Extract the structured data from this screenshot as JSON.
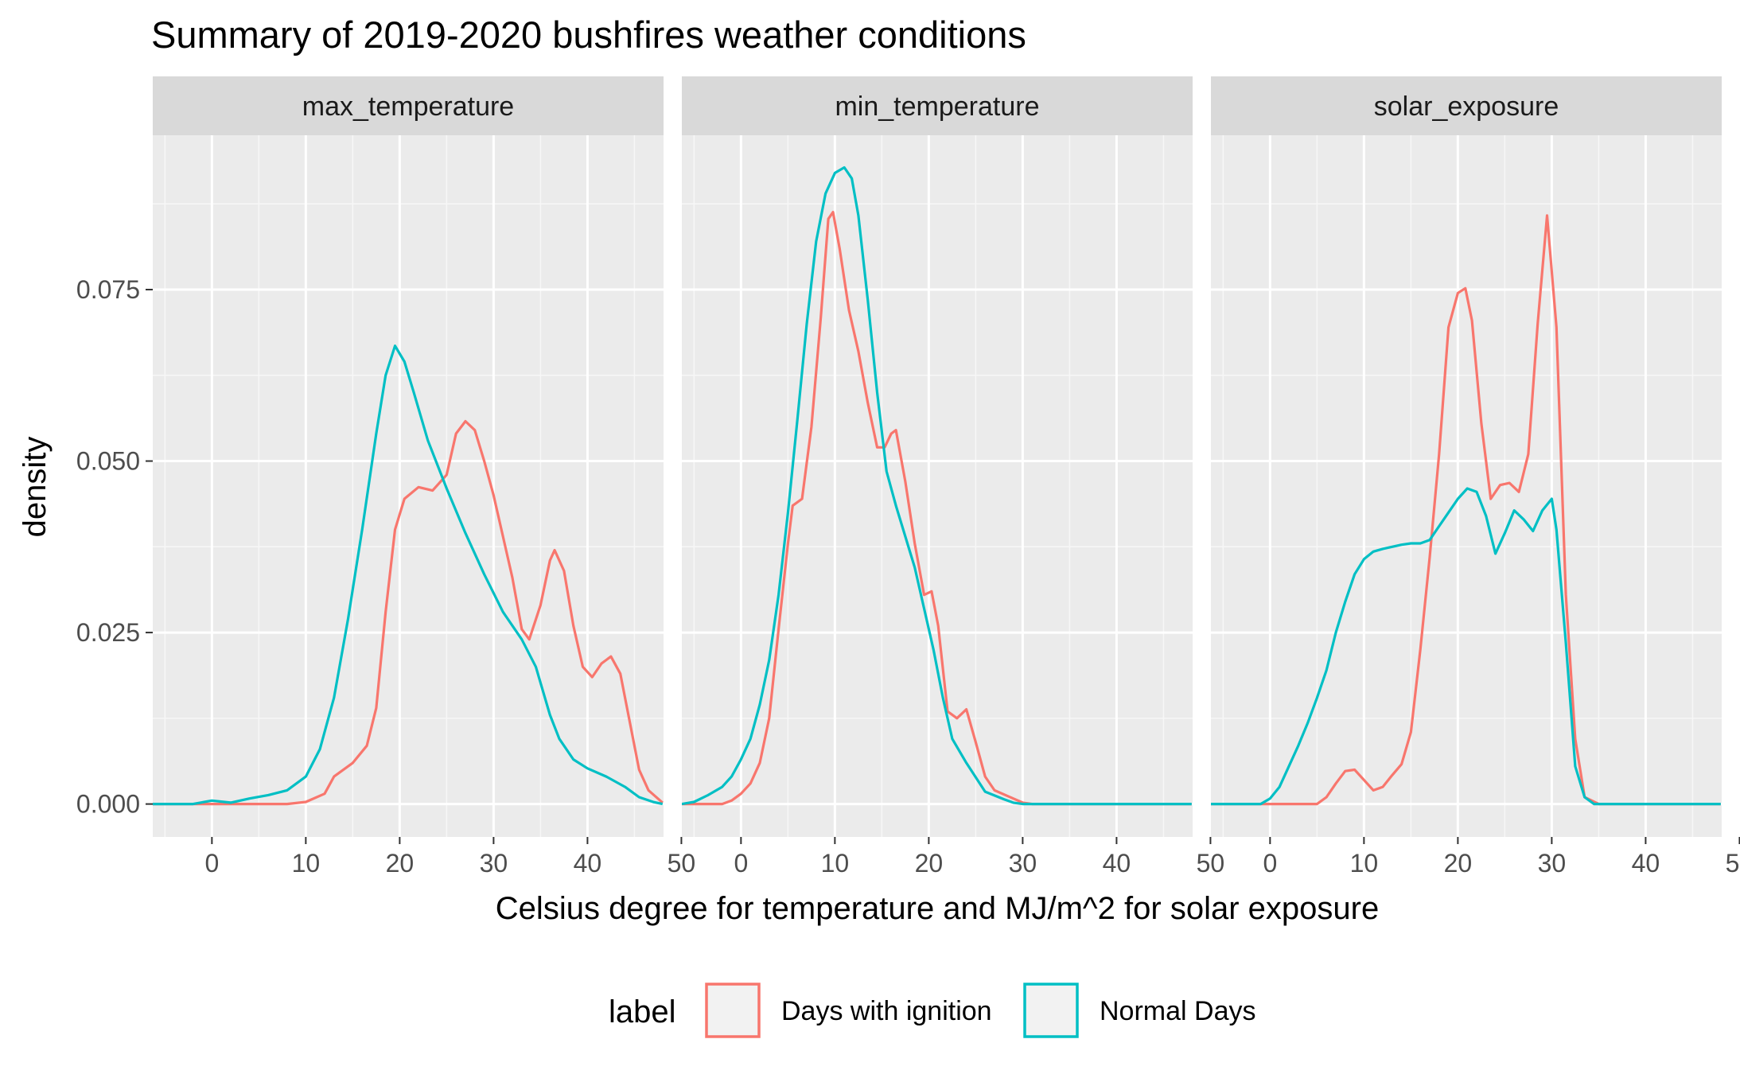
{
  "chart_data": {
    "type": "line",
    "title": "Summary of 2019-2020 bushfires weather conditions",
    "xlabel": "Celsius degree for temperature and MJ/m^2 for solar exposure",
    "ylabel": "density",
    "xlim": [
      -6.3,
      48.1
    ],
    "ylim": [
      -0.0048,
      0.0975
    ],
    "x_ticks": [
      0,
      10,
      20,
      30,
      40,
      50
    ],
    "y_ticks": [
      0,
      0.025,
      0.05,
      0.075
    ],
    "y_tick_labels": [
      "0.000",
      "0.025",
      "0.050",
      "0.075"
    ],
    "grid": true,
    "legend_placement": "bottom",
    "legend": {
      "title": "label",
      "entries": [
        {
          "name": "Days with ignition",
          "color": "#F8766D"
        },
        {
          "name": "Normal Days",
          "color": "#00BFC4"
        }
      ]
    },
    "panels": [
      {
        "name": "max_temperature",
        "series": [
          {
            "name": "Days with ignition",
            "color": "#F8766D",
            "points": [
              [
                -6.3,
                0
              ],
              [
                8,
                0
              ],
              [
                10,
                0.0003
              ],
              [
                12,
                0.0015
              ],
              [
                13,
                0.004
              ],
              [
                15,
                0.006
              ],
              [
                16.5,
                0.0085
              ],
              [
                17.5,
                0.014
              ],
              [
                18.5,
                0.028
              ],
              [
                19.5,
                0.04
              ],
              [
                20.5,
                0.0445
              ],
              [
                22,
                0.0462
              ],
              [
                23.5,
                0.0457
              ],
              [
                25,
                0.048
              ],
              [
                26,
                0.054
              ],
              [
                27,
                0.0558
              ],
              [
                28,
                0.0545
              ],
              [
                29,
                0.05
              ],
              [
                30,
                0.045
              ],
              [
                31,
                0.039
              ],
              [
                32,
                0.033
              ],
              [
                33,
                0.0255
              ],
              [
                33.8,
                0.024
              ],
              [
                35,
                0.029
              ],
              [
                36,
                0.0355
              ],
              [
                36.5,
                0.037
              ],
              [
                37.5,
                0.034
              ],
              [
                38.5,
                0.026
              ],
              [
                39.5,
                0.02
              ],
              [
                40.5,
                0.0185
              ],
              [
                41.5,
                0.0205
              ],
              [
                42.5,
                0.0215
              ],
              [
                43.5,
                0.019
              ],
              [
                44.5,
                0.012
              ],
              [
                45.5,
                0.005
              ],
              [
                46.5,
                0.002
              ],
              [
                48,
                0.0002
              ]
            ]
          },
          {
            "name": "Normal Days",
            "color": "#00BFC4",
            "points": [
              [
                -6.3,
                0
              ],
              [
                -2,
                0
              ],
              [
                0,
                0.0005
              ],
              [
                2,
                0.0002
              ],
              [
                4,
                0.0008
              ],
              [
                6,
                0.0013
              ],
              [
                8,
                0.002
              ],
              [
                10,
                0.004
              ],
              [
                11.5,
                0.008
              ],
              [
                13,
                0.0155
              ],
              [
                14.5,
                0.027
              ],
              [
                16,
                0.04
              ],
              [
                17.5,
                0.054
              ],
              [
                18.5,
                0.0625
              ],
              [
                19.5,
                0.0668
              ],
              [
                20.5,
                0.0645
              ],
              [
                21.5,
                0.06
              ],
              [
                23,
                0.053
              ],
              [
                25,
                0.046
              ],
              [
                27,
                0.0395
              ],
              [
                29,
                0.0335
              ],
              [
                31,
                0.028
              ],
              [
                33,
                0.024
              ],
              [
                34.5,
                0.02
              ],
              [
                36,
                0.013
              ],
              [
                37,
                0.0095
              ],
              [
                38.5,
                0.0065
              ],
              [
                40,
                0.0052
              ],
              [
                42,
                0.004
              ],
              [
                44,
                0.0025
              ],
              [
                45.5,
                0.001
              ],
              [
                47,
                0.0003
              ],
              [
                48,
                0
              ]
            ]
          }
        ]
      },
      {
        "name": "min_temperature",
        "series": [
          {
            "name": "Days with ignition",
            "color": "#F8766D",
            "points": [
              [
                -6.3,
                0
              ],
              [
                -2,
                0
              ],
              [
                -1,
                0.0005
              ],
              [
                0,
                0.0015
              ],
              [
                1,
                0.003
              ],
              [
                2,
                0.006
              ],
              [
                3,
                0.0125
              ],
              [
                4,
                0.0255
              ],
              [
                5,
                0.038
              ],
              [
                5.5,
                0.0435
              ],
              [
                6.5,
                0.0445
              ],
              [
                7.5,
                0.055
              ],
              [
                8.5,
                0.071
              ],
              [
                9.3,
                0.0853
              ],
              [
                9.8,
                0.0863
              ],
              [
                10.5,
                0.081
              ],
              [
                11.5,
                0.072
              ],
              [
                12.5,
                0.066
              ],
              [
                13.5,
                0.0585
              ],
              [
                14.5,
                0.052
              ],
              [
                15.3,
                0.052
              ],
              [
                16,
                0.054
              ],
              [
                16.5,
                0.0545
              ],
              [
                17.5,
                0.047
              ],
              [
                18.5,
                0.038
              ],
              [
                19.5,
                0.0305
              ],
              [
                20.3,
                0.031
              ],
              [
                21,
                0.026
              ],
              [
                22,
                0.0135
              ],
              [
                23,
                0.0125
              ],
              [
                24,
                0.0138
              ],
              [
                25,
                0.009
              ],
              [
                26,
                0.004
              ],
              [
                27,
                0.002
              ],
              [
                29,
                0.0008
              ],
              [
                30,
                0.0002
              ],
              [
                31,
                0
              ],
              [
                48,
                0
              ]
            ]
          },
          {
            "name": "Normal Days",
            "color": "#00BFC4",
            "points": [
              [
                -6.3,
                0
              ],
              [
                -5,
                0.0003
              ],
              [
                -3.5,
                0.0013
              ],
              [
                -2,
                0.0025
              ],
              [
                -1,
                0.004
              ],
              [
                0,
                0.0065
              ],
              [
                1,
                0.0095
              ],
              [
                2,
                0.0145
              ],
              [
                3,
                0.021
              ],
              [
                4,
                0.0305
              ],
              [
                5,
                0.0425
              ],
              [
                6,
                0.056
              ],
              [
                7,
                0.07
              ],
              [
                8,
                0.082
              ],
              [
                9,
                0.089
              ],
              [
                10,
                0.092
              ],
              [
                11,
                0.0928
              ],
              [
                11.8,
                0.0912
              ],
              [
                12.5,
                0.0858
              ],
              [
                13.5,
                0.0735
              ],
              [
                14.5,
                0.06
              ],
              [
                15.5,
                0.0485
              ],
              [
                16.5,
                0.0435
              ],
              [
                17.5,
                0.039
              ],
              [
                18.5,
                0.0345
              ],
              [
                19.5,
                0.0285
              ],
              [
                20.5,
                0.0225
              ],
              [
                21.5,
                0.0155
              ],
              [
                22.5,
                0.0095
              ],
              [
                24,
                0.006
              ],
              [
                26,
                0.0018
              ],
              [
                28,
                0.0007
              ],
              [
                29,
                0.0002
              ],
              [
                30,
                0
              ],
              [
                48,
                0
              ]
            ]
          }
        ]
      },
      {
        "name": "solar_exposure",
        "series": [
          {
            "name": "Days with ignition",
            "color": "#F8766D",
            "points": [
              [
                -6.3,
                0
              ],
              [
                5,
                0
              ],
              [
                6,
                0.001
              ],
              [
                7,
                0.003
              ],
              [
                8,
                0.0048
              ],
              [
                9,
                0.005
              ],
              [
                10,
                0.0035
              ],
              [
                11,
                0.002
              ],
              [
                12,
                0.0025
              ],
              [
                13,
                0.0042
              ],
              [
                14,
                0.0058
              ],
              [
                15,
                0.0105
              ],
              [
                16,
                0.0225
              ],
              [
                17,
                0.036
              ],
              [
                18,
                0.051
              ],
              [
                19,
                0.0695
              ],
              [
                20,
                0.0745
              ],
              [
                20.8,
                0.0752
              ],
              [
                21.5,
                0.0705
              ],
              [
                22.5,
                0.0555
              ],
              [
                23.5,
                0.0445
              ],
              [
                24.5,
                0.0465
              ],
              [
                25.5,
                0.0468
              ],
              [
                26.5,
                0.0455
              ],
              [
                27.5,
                0.051
              ],
              [
                28.5,
                0.07
              ],
              [
                29.5,
                0.0858
              ],
              [
                30.5,
                0.0695
              ],
              [
                31.5,
                0.0305
              ],
              [
                32.5,
                0.0095
              ],
              [
                33.5,
                0.001
              ],
              [
                35,
                0
              ],
              [
                48,
                0
              ]
            ]
          },
          {
            "name": "Normal Days",
            "color": "#00BFC4",
            "points": [
              [
                -6.3,
                0
              ],
              [
                -1,
                0
              ],
              [
                0,
                0.0008
              ],
              [
                1,
                0.0025
              ],
              [
                2,
                0.0055
              ],
              [
                3,
                0.0085
              ],
              [
                4,
                0.0118
              ],
              [
                5,
                0.0155
              ],
              [
                6,
                0.0195
              ],
              [
                7,
                0.025
              ],
              [
                8,
                0.0295
              ],
              [
                9,
                0.0335
              ],
              [
                10,
                0.0357
              ],
              [
                11,
                0.0368
              ],
              [
                12,
                0.0372
              ],
              [
                13,
                0.0375
              ],
              [
                14,
                0.0378
              ],
              [
                15,
                0.038
              ],
              [
                16,
                0.038
              ],
              [
                17,
                0.0385
              ],
              [
                18,
                0.0405
              ],
              [
                19,
                0.0425
              ],
              [
                20,
                0.0445
              ],
              [
                21,
                0.046
              ],
              [
                22,
                0.0455
              ],
              [
                23,
                0.042
              ],
              [
                24,
                0.0365
              ],
              [
                25,
                0.0395
              ],
              [
                26,
                0.0428
              ],
              [
                27,
                0.0415
              ],
              [
                28,
                0.0398
              ],
              [
                29,
                0.0428
              ],
              [
                30,
                0.0445
              ],
              [
                30.5,
                0.04
              ],
              [
                31.5,
                0.0235
              ],
              [
                32.5,
                0.0055
              ],
              [
                33.5,
                0.001
              ],
              [
                34.5,
                0
              ],
              [
                48,
                0
              ]
            ]
          }
        ]
      }
    ]
  }
}
